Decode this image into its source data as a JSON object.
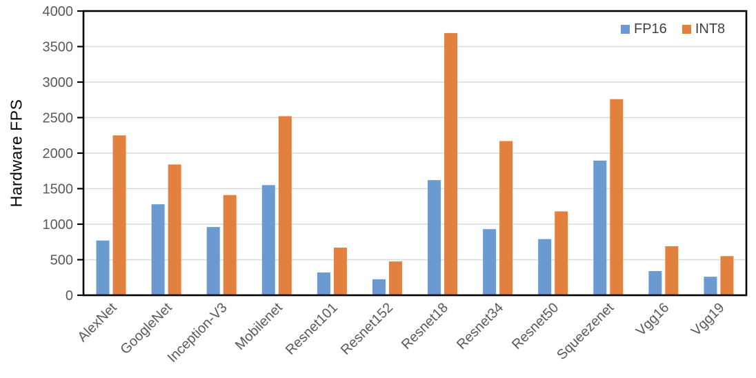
{
  "chart_data": {
    "type": "bar",
    "title": "",
    "xlabel": "",
    "ylabel": "Hardware FPS",
    "ylim": [
      0,
      4000
    ],
    "ytick_step": 500,
    "grid": true,
    "legend_position": "top-right-inside",
    "categories": [
      "AlexNet",
      "GoogleNet",
      "Inception-V3",
      "Mobilenet",
      "Resnet101",
      "Resnet152",
      "Resnet18",
      "Resnet34",
      "Resnet50",
      "Squeezenet",
      "Vgg16",
      "Vgg19"
    ],
    "series": [
      {
        "name": "FP16",
        "color": "#6A9AD0",
        "values": [
          770,
          1280,
          960,
          1550,
          320,
          225,
          1620,
          930,
          790,
          1895,
          340,
          260
        ]
      },
      {
        "name": "INT8",
        "color": "#E2813E",
        "values": [
          2250,
          1840,
          1410,
          2520,
          670,
          475,
          3690,
          2170,
          1180,
          2760,
          690,
          550
        ]
      }
    ],
    "colors": {
      "gridline": "#D9D9D9",
      "axis_border": "#000000",
      "tick_label": "#595959",
      "category_label": "#595959",
      "legend_text": "#404040",
      "axis_title": "#000000",
      "background": "#FFFFFF"
    }
  }
}
